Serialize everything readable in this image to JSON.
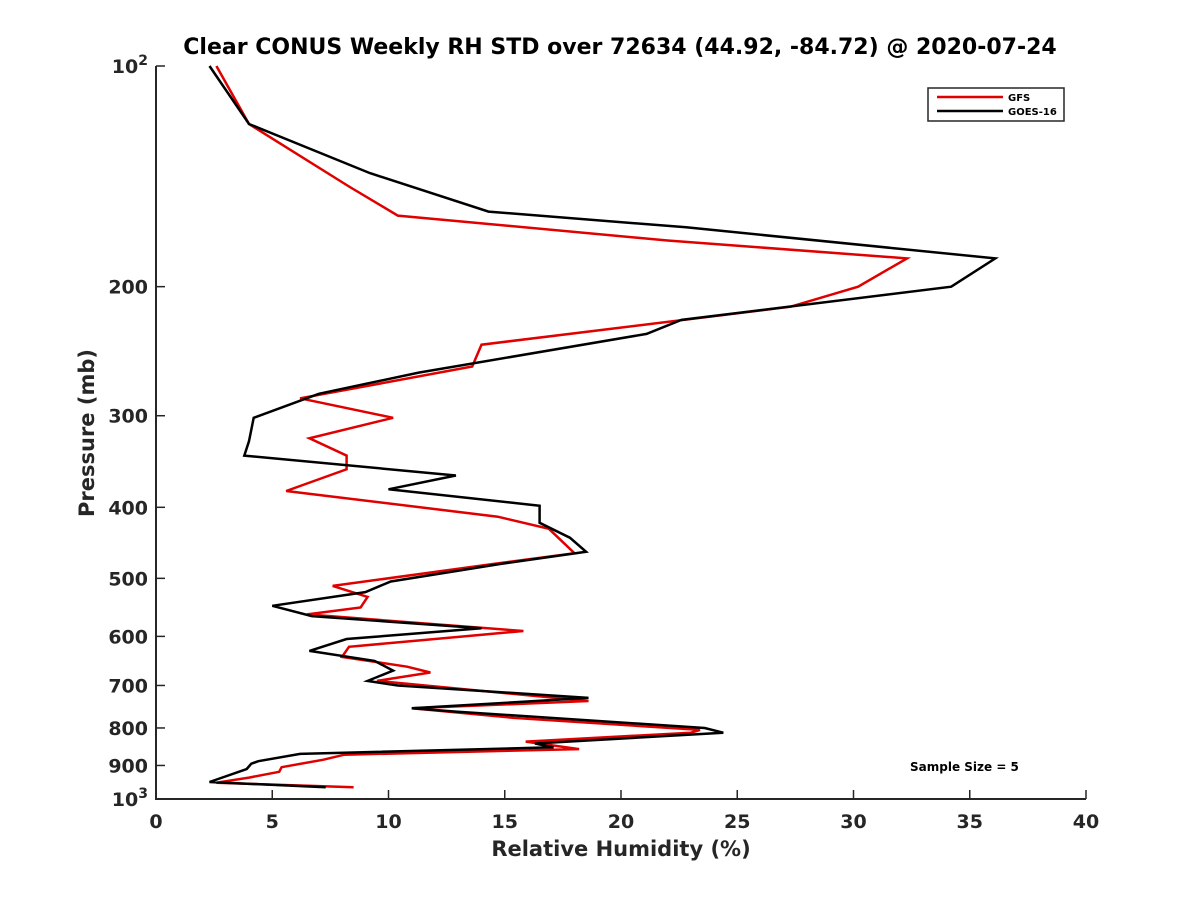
{
  "chart_data": {
    "type": "line",
    "title": "Clear CONUS Weekly RH STD over 72634 (44.92, -84.72) @ 2020-07-24",
    "xlabel": "Relative Humidity (%)",
    "ylabel": "Pressure (mb)",
    "xlim": [
      0,
      40
    ],
    "ylim": [
      1000,
      100
    ],
    "yscale": "log",
    "y_reversed": true,
    "grid": false,
    "legend_position": "top-right",
    "xticks": [
      0,
      5,
      10,
      15,
      20,
      25,
      30,
      35,
      40
    ],
    "xtick_labels": [
      "0",
      "5",
      "10",
      "15",
      "20",
      "25",
      "30",
      "35",
      "40"
    ],
    "yticks": [
      100,
      200,
      300,
      400,
      500,
      600,
      700,
      800,
      900,
      1000
    ],
    "ytick_labels": [
      "10^2",
      "200",
      "300",
      "400",
      "500",
      "600",
      "700",
      "800",
      "900",
      "10^3"
    ],
    "annotations": [
      {
        "text": "Sample Size = 5",
        "position": "bottom-right"
      }
    ],
    "series": [
      {
        "name": "GFS",
        "color": "#e00000",
        "points": [
          [
            2.6,
            100
          ],
          [
            4.0,
            120
          ],
          [
            8.3,
            146
          ],
          [
            10.4,
            160
          ],
          [
            22.0,
            173
          ],
          [
            32.3,
            183
          ],
          [
            30.2,
            200
          ],
          [
            27.3,
            213
          ],
          [
            14.0,
            240
          ],
          [
            13.6,
            257
          ],
          [
            6.2,
            284
          ],
          [
            10.2,
            302
          ],
          [
            6.6,
            322
          ],
          [
            8.2,
            340
          ],
          [
            8.2,
            355
          ],
          [
            5.6,
            380
          ],
          [
            14.7,
            412
          ],
          [
            16.9,
            428
          ],
          [
            18.0,
            462
          ],
          [
            14.5,
            478
          ],
          [
            7.6,
            512
          ],
          [
            9.1,
            530
          ],
          [
            8.8,
            548
          ],
          [
            6.5,
            560
          ],
          [
            15.8,
            590
          ],
          [
            8.3,
            620
          ],
          [
            8.0,
            640
          ],
          [
            10.8,
            660
          ],
          [
            11.8,
            672
          ],
          [
            9.5,
            690
          ],
          [
            18.6,
            735
          ],
          [
            11.0,
            752
          ],
          [
            15.4,
            775
          ],
          [
            23.4,
            805
          ],
          [
            23.0,
            812
          ],
          [
            15.9,
            835
          ],
          [
            18.2,
            855
          ],
          [
            8.1,
            870
          ],
          [
            7.2,
            884
          ],
          [
            5.4,
            905
          ],
          [
            5.3,
            918
          ],
          [
            4.0,
            935
          ],
          [
            2.6,
            950
          ],
          [
            8.5,
            964
          ]
        ]
      },
      {
        "name": "GOES-16",
        "color": "#000000",
        "points": [
          [
            2.3,
            100
          ],
          [
            4.0,
            120
          ],
          [
            9.2,
            140
          ],
          [
            14.3,
            158
          ],
          [
            22.8,
            166
          ],
          [
            36.1,
            183
          ],
          [
            34.2,
            200
          ],
          [
            22.6,
            222
          ],
          [
            21.1,
            232
          ],
          [
            11.3,
            262
          ],
          [
            7.0,
            280
          ],
          [
            4.2,
            302
          ],
          [
            4.0,
            325
          ],
          [
            3.8,
            340
          ],
          [
            12.9,
            362
          ],
          [
            10.0,
            378
          ],
          [
            16.5,
            398
          ],
          [
            16.5,
            420
          ],
          [
            17.8,
            440
          ],
          [
            18.5,
            460
          ],
          [
            14.8,
            478
          ],
          [
            10.1,
            505
          ],
          [
            9.0,
            522
          ],
          [
            5.0,
            545
          ],
          [
            6.7,
            563
          ],
          [
            14.0,
            585
          ],
          [
            8.2,
            605
          ],
          [
            6.6,
            628
          ],
          [
            9.4,
            648
          ],
          [
            10.2,
            668
          ],
          [
            9.1,
            690
          ],
          [
            10.4,
            700
          ],
          [
            18.6,
            728
          ],
          [
            11.0,
            752
          ],
          [
            12.9,
            760
          ],
          [
            23.6,
            800
          ],
          [
            24.4,
            812
          ],
          [
            16.3,
            840
          ],
          [
            17.1,
            850
          ],
          [
            6.2,
            868
          ],
          [
            4.4,
            888
          ],
          [
            4.1,
            895
          ],
          [
            3.9,
            910
          ],
          [
            2.3,
            948
          ],
          [
            7.3,
            964
          ]
        ]
      }
    ]
  }
}
